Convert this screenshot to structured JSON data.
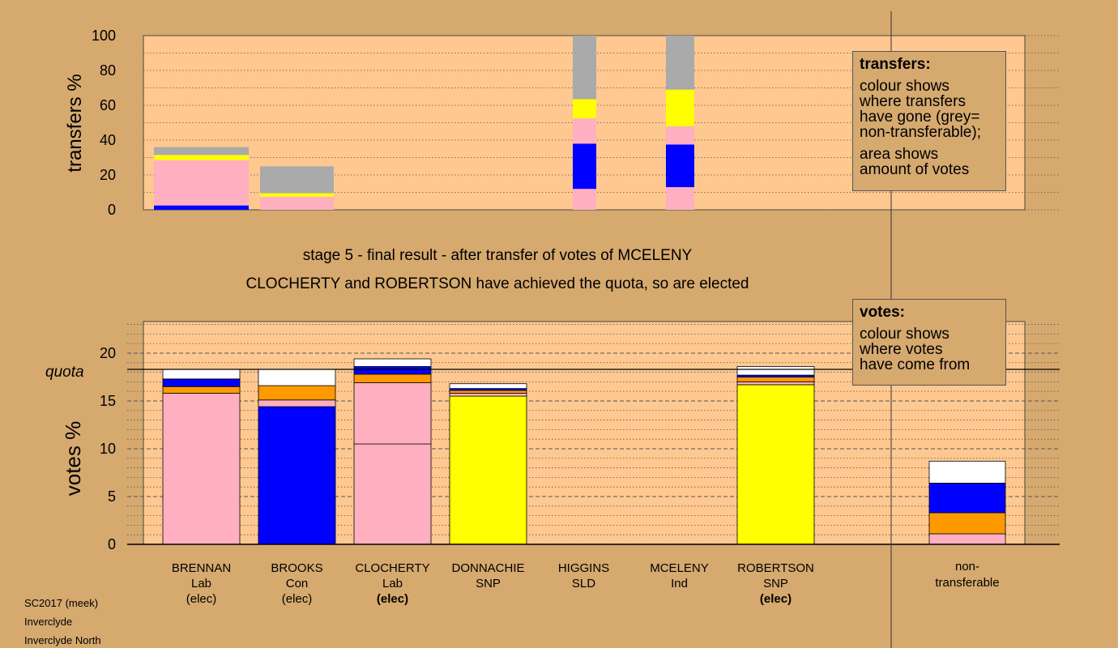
{
  "chart_data": [
    {
      "type": "bar",
      "name": "transfers",
      "ylabel": "transfers %",
      "ylim": [
        0,
        100
      ],
      "yticks": [
        0,
        20,
        40,
        60,
        80,
        100
      ],
      "bars": [
        {
          "candidate": "BRENNAN",
          "segments": [
            {
              "color": "#0000ff",
              "from": 0,
              "to": 2.5
            },
            {
              "color": "#ffb0c0",
              "from": 2.5,
              "to": 28.5
            },
            {
              "color": "#ffff00",
              "from": 28.5,
              "to": 31.5
            },
            {
              "color": "#aaaaaa",
              "from": 31.5,
              "to": 36
            }
          ]
        },
        {
          "candidate": "BROOKS",
          "segments": [
            {
              "color": "#ffb0c0",
              "from": 0,
              "to": 7.5
            },
            {
              "color": "#ffff00",
              "from": 7.5,
              "to": 9.5
            },
            {
              "color": "#aaaaaa",
              "from": 9.5,
              "to": 25
            }
          ]
        },
        {
          "candidate": "HIGGINS",
          "segments": [
            {
              "color": "#ffb0c0",
              "from": 0,
              "to": 12
            },
            {
              "color": "#0000ff",
              "from": 12,
              "to": 38
            },
            {
              "color": "#ffb0c0",
              "from": 38,
              "to": 52.5
            },
            {
              "color": "#ffff00",
              "from": 52.5,
              "to": 63.5
            },
            {
              "color": "#aaaaaa",
              "from": 63.5,
              "to": 100
            }
          ]
        },
        {
          "candidate": "MCELENY",
          "segments": [
            {
              "color": "#ffb0c0",
              "from": 0,
              "to": 13
            },
            {
              "color": "#0000ff",
              "from": 13,
              "to": 37.5
            },
            {
              "color": "#ffb0c0",
              "from": 37.5,
              "to": 48
            },
            {
              "color": "#ffff00",
              "from": 48,
              "to": 69
            },
            {
              "color": "#aaaaaa",
              "from": 69,
              "to": 100
            }
          ]
        }
      ]
    },
    {
      "type": "bar",
      "name": "votes",
      "ylabel": "votes %",
      "ylim": [
        0,
        23.3
      ],
      "yticks": [
        0,
        5,
        10,
        15,
        20
      ],
      "quota": 18.3,
      "quota_label": "quota",
      "categories": [
        {
          "name": "BRENNAN",
          "party": "Lab",
          "status": "(elec)",
          "bold": false,
          "segments": [
            {
              "color": "#ffb0c0",
              "from": 0,
              "to": 15.8
            },
            {
              "color": "#ff9900",
              "from": 15.8,
              "to": 16.5
            },
            {
              "color": "#0000ff",
              "from": 16.5,
              "to": 17.3
            },
            {
              "color": "#ffffff",
              "from": 17.3,
              "to": 18.3
            }
          ]
        },
        {
          "name": "BROOKS",
          "party": "Con",
          "status": "(elec)",
          "bold": false,
          "segments": [
            {
              "color": "#0000ff",
              "from": 0,
              "to": 14.4
            },
            {
              "color": "#ffb0c0",
              "from": 14.4,
              "to": 15.1
            },
            {
              "color": "#ff9900",
              "from": 15.1,
              "to": 16.6
            },
            {
              "color": "#ffffff",
              "from": 16.6,
              "to": 18.3
            }
          ]
        },
        {
          "name": "CLOCHERTY",
          "party": "Lab",
          "status": "(elec)",
          "bold": true,
          "segments": [
            {
              "color": "#ffb0c0",
              "from": 0,
              "to": 10.5
            },
            {
              "color": "#ffb0c0",
              "from": 10.5,
              "to": 16.9
            },
            {
              "color": "#ff9900",
              "from": 16.9,
              "to": 17.8
            },
            {
              "color": "#0000ff",
              "from": 17.8,
              "to": 18.6
            },
            {
              "color": "#ffffff",
              "from": 18.6,
              "to": 19.4
            }
          ]
        },
        {
          "name": "DONNACHIE",
          "party": "SNP",
          "status": "",
          "bold": false,
          "segments": [
            {
              "color": "#ffff00",
              "from": 0,
              "to": 15.5
            },
            {
              "color": "#ffb0c0",
              "from": 15.5,
              "to": 15.8
            },
            {
              "color": "#ff9900",
              "from": 15.8,
              "to": 16.1
            },
            {
              "color": "#0000ff",
              "from": 16.1,
              "to": 16.3
            },
            {
              "color": "#ffffff",
              "from": 16.3,
              "to": 16.8
            }
          ]
        },
        {
          "name": "HIGGINS",
          "party": "SLD",
          "status": "",
          "bold": false,
          "segments": []
        },
        {
          "name": "MCELENY",
          "party": "Ind",
          "status": "",
          "bold": false,
          "segments": []
        },
        {
          "name": "ROBERTSON",
          "party": "SNP",
          "status": "(elec)",
          "bold": true,
          "segments": [
            {
              "color": "#ffff00",
              "from": 0,
              "to": 16.7
            },
            {
              "color": "#ffb0c0",
              "from": 16.7,
              "to": 17.0
            },
            {
              "color": "#ff9900",
              "from": 17.0,
              "to": 17.5
            },
            {
              "color": "#0000ff",
              "from": 17.5,
              "to": 17.7
            },
            {
              "color": "#ffffff",
              "from": 17.7,
              "to": 18.6
            }
          ]
        }
      ],
      "nontransferable": {
        "label1": "non-",
        "label2": "transferable",
        "segments": [
          {
            "color": "#ffb0c0",
            "from": 0,
            "to": 1.1
          },
          {
            "color": "#ff9900",
            "from": 1.1,
            "to": 3.3
          },
          {
            "color": "#0000ff",
            "from": 3.3,
            "to": 6.4
          },
          {
            "color": "#ffffff",
            "from": 6.4,
            "to": 8.7
          }
        ]
      }
    }
  ],
  "title1": "stage 5 - final result - after transfer of votes of MCELENY",
  "title2": "CLOCHERTY and ROBERTSON have achieved the quota, so are elected",
  "legend_transfers": {
    "head": "transfers:",
    "l1": "colour shows",
    "l2": "where transfers",
    "l3": "have gone (grey=",
    "l4": "non-transferable);",
    "l5": "area shows",
    "l6": "amount of votes"
  },
  "legend_votes": {
    "head": "votes:",
    "l1": "colour shows",
    "l2": "where votes",
    "l3": "have come from"
  },
  "footer": {
    "line1": "SC2017 (meek)",
    "line2": "Inverclyde",
    "line3": "Inverclyde North"
  },
  "colors": {
    "background": "#d6a96f",
    "plot_bg": "#ffc890",
    "gridline": "#555555"
  }
}
